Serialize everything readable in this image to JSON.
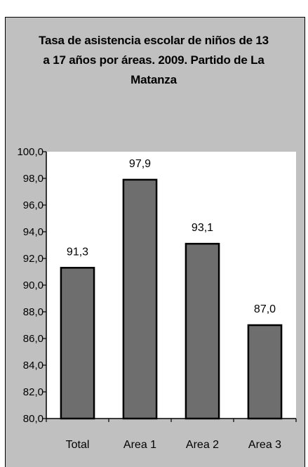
{
  "chart_data": {
    "type": "bar",
    "title_lines": [
      "Tasa de asistencia escolar de niños de 13",
      "a 17 años por áreas. 2009. Partido de La",
      "Matanza"
    ],
    "categories": [
      "Total",
      "Area 1",
      "Area 2",
      "Area 3"
    ],
    "values": [
      91.3,
      97.9,
      93.1,
      87.0
    ],
    "value_labels": [
      "91,3",
      "97,9",
      "93,1",
      "87,0"
    ],
    "ylim": [
      80,
      100
    ],
    "yticks": [
      "80,0",
      "82,0",
      "84,0",
      "86,0",
      "88,0",
      "90,0",
      "92,0",
      "94,0",
      "96,0",
      "98,0",
      "100,0"
    ],
    "xlabel": "",
    "ylabel": "",
    "grid": false,
    "colors": {
      "bar": "#6e6e6e",
      "plot_bg": "#ffffff",
      "chart_bg": "#c0c0c0"
    }
  }
}
